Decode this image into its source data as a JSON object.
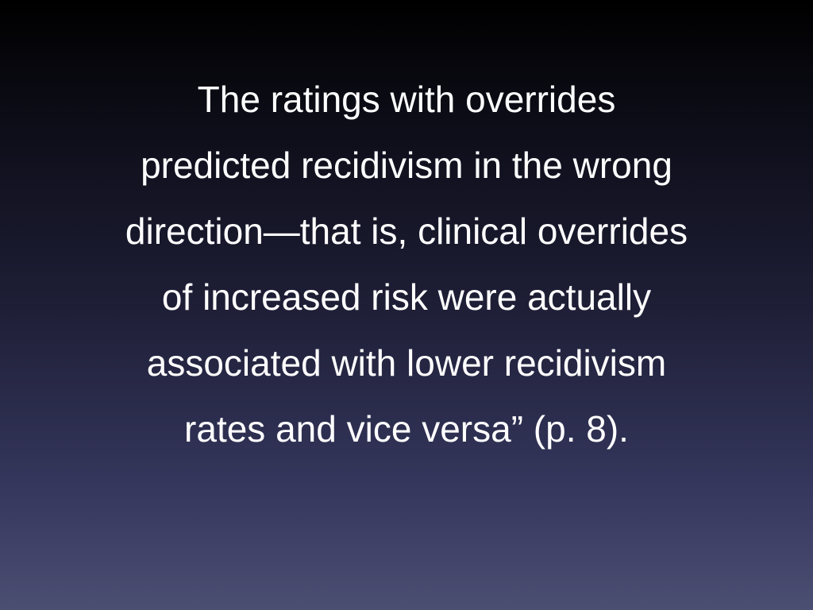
{
  "slide": {
    "lines": [
      "The ratings with overrides",
      "predicted recidivism in the wrong",
      "direction—that is, clinical overrides",
      "of increased risk were actually",
      "associated with lower recidivism",
      "rates and vice versa” (p. 8)."
    ]
  }
}
